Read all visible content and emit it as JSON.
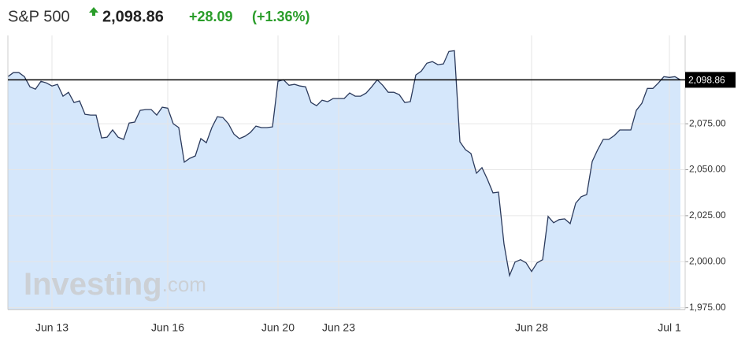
{
  "header": {
    "name": "S&P 500",
    "price": "2,098.86",
    "change": "+28.09",
    "change_pct": "(+1.36%)"
  },
  "chart_data": {
    "type": "area",
    "watermark": [
      "Investing",
      ".com"
    ],
    "categories": [
      null,
      null,
      null,
      null,
      null,
      null,
      null,
      null,
      "Jun 13",
      null,
      null,
      null,
      null,
      null,
      null,
      null,
      null,
      null,
      null,
      null,
      null,
      null,
      null,
      null,
      null,
      null,
      null,
      null,
      null,
      "Jun 16",
      null,
      null,
      null,
      null,
      null,
      null,
      null,
      null,
      null,
      null,
      null,
      null,
      null,
      null,
      null,
      null,
      null,
      null,
      null,
      "Jun 20",
      null,
      null,
      null,
      null,
      null,
      null,
      null,
      null,
      null,
      null,
      "Jun 23",
      null,
      null,
      null,
      null,
      null,
      null,
      null,
      null,
      null,
      null,
      null,
      null,
      null,
      null,
      null,
      null,
      null,
      null,
      null,
      null,
      null,
      null,
      null,
      null,
      null,
      null,
      null,
      null,
      null,
      null,
      null,
      null,
      null,
      null,
      "Jun 28",
      null,
      null,
      null,
      null,
      null,
      null,
      null,
      null,
      null,
      null,
      null,
      null,
      null,
      null,
      null,
      null,
      null,
      null,
      null,
      null,
      null,
      null,
      null,
      null,
      "Jul 1",
      null,
      null
    ],
    "values": [
      2100.6,
      2102.8,
      2102.8,
      2100.6,
      2095.1,
      2093.8,
      2098.1,
      2097.2,
      2095.5,
      2096.4,
      2090.0,
      2092.1,
      2086.5,
      2087.4,
      2080.1,
      2079.7,
      2079.7,
      2067.3,
      2067.7,
      2071.6,
      2067.7,
      2066.5,
      2075.4,
      2075.9,
      2082.3,
      2082.7,
      2082.7,
      2079.7,
      2084.0,
      2083.5,
      2075.0,
      2072.9,
      2054.1,
      2056.2,
      2057.5,
      2066.9,
      2064.7,
      2072.9,
      2078.8,
      2078.4,
      2075.0,
      2069.4,
      2066.9,
      2068.2,
      2070.3,
      2073.7,
      2072.9,
      2072.9,
      2073.3,
      2098.1,
      2098.9,
      2095.9,
      2096.4,
      2095.5,
      2095.1,
      2086.5,
      2084.8,
      2087.8,
      2087.0,
      2088.7,
      2088.7,
      2088.7,
      2091.7,
      2090.0,
      2090.0,
      2091.7,
      2095.1,
      2098.9,
      2095.9,
      2092.1,
      2092.1,
      2090.8,
      2086.5,
      2087.0,
      2101.5,
      2103.6,
      2107.9,
      2108.8,
      2107.1,
      2107.5,
      2114.3,
      2114.7,
      2065.2,
      2060.9,
      2058.8,
      2048.1,
      2051.1,
      2044.7,
      2037.4,
      2037.8,
      2009.6,
      1992.5,
      1999.8,
      2001.1,
      1999.4,
      1994.7,
      1999.4,
      2001.1,
      2024.6,
      2021.2,
      2022.9,
      2023.3,
      2020.7,
      2031.8,
      2035.3,
      2036.5,
      2054.5,
      2060.9,
      2066.5,
      2066.5,
      2068.6,
      2071.6,
      2071.6,
      2071.6,
      2082.3,
      2086.1,
      2094.2,
      2094.2,
      2097.2,
      2100.6,
      2100.2,
      2100.6,
      2098.86
    ],
    "color": "#2b3a5c",
    "fill": "#d5e7fb",
    "ylim": [
      1974,
      2123
    ],
    "yticks": [
      {
        "value": 1975,
        "label": "1,975.00"
      },
      {
        "value": 2000,
        "label": "2,000.00"
      },
      {
        "value": 2025,
        "label": "2,025.00"
      },
      {
        "value": 2050,
        "label": "2,050.00"
      },
      {
        "value": 2075,
        "label": "2,075.00"
      }
    ],
    "reference_line": {
      "value": 2098.86,
      "label": "2,098.86"
    },
    "grid": true
  }
}
